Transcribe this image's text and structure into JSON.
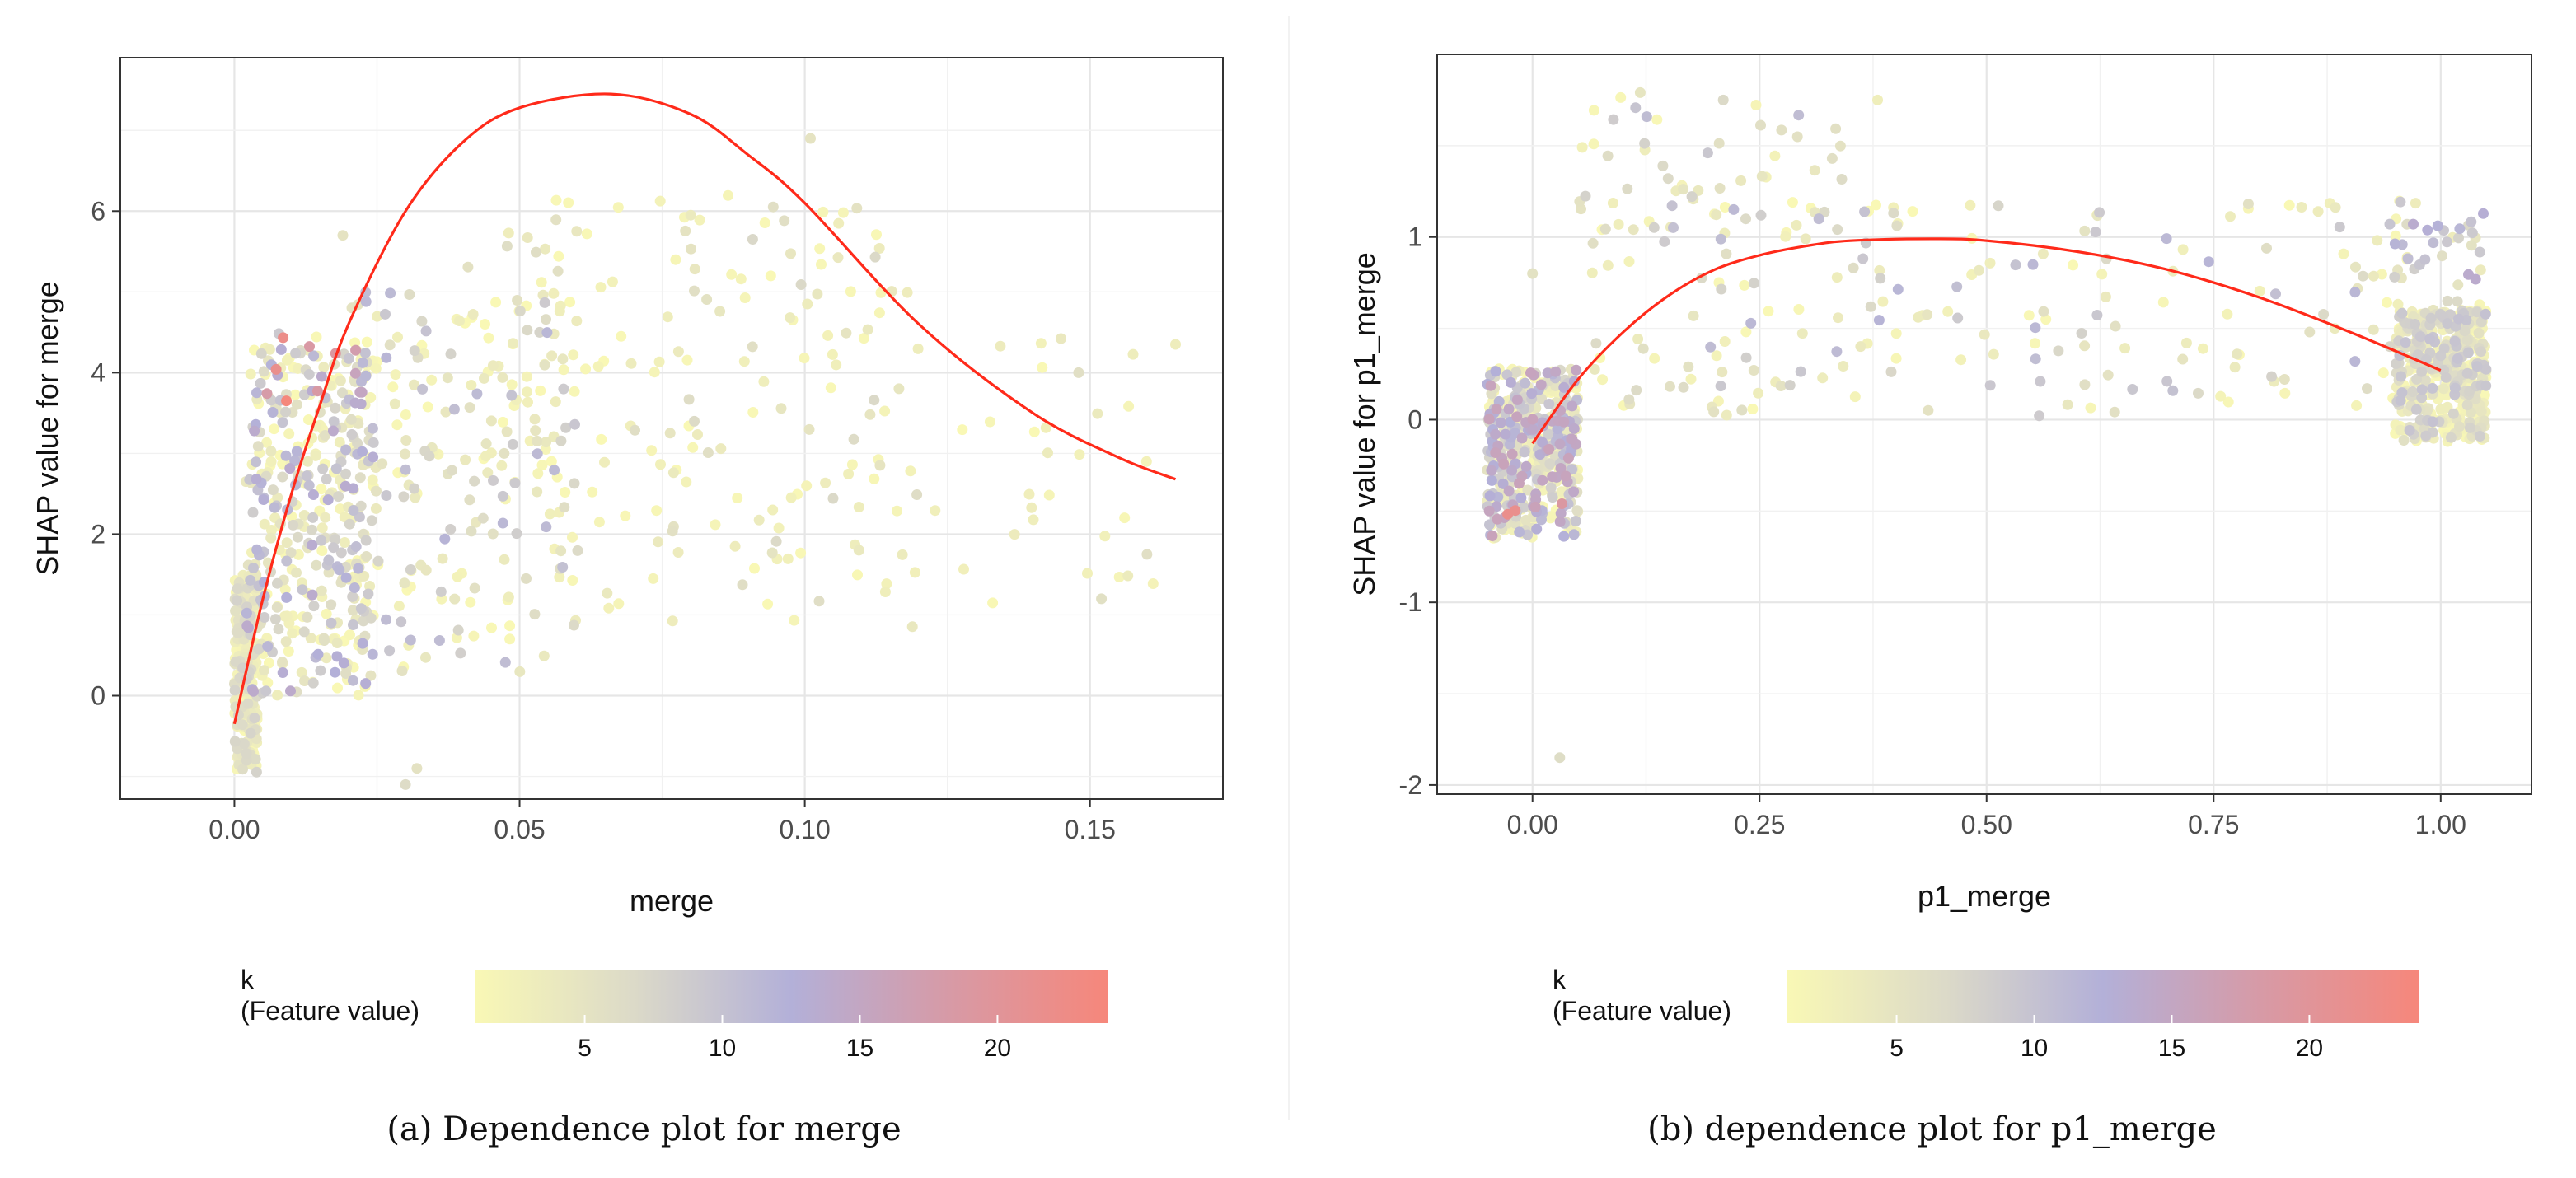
{
  "chart_data": [
    {
      "type": "scatter",
      "id": "a",
      "caption": "(a) Dependence plot for merge",
      "xlabel": "merge",
      "ylabel": "SHAP value for merge",
      "xlim": [
        -0.02,
        0.1733
      ],
      "ylim": [
        -1.28,
        7.9
      ],
      "xticks": [
        0.0,
        0.05,
        0.1,
        0.15
      ],
      "xtick_labels": [
        "0.00",
        "0.05",
        "0.10",
        "0.15"
      ],
      "yticks": [
        0,
        2,
        4,
        6
      ],
      "ytick_labels": [
        "0",
        "2",
        "4",
        "6"
      ],
      "grid": true,
      "fit_line": {
        "color": "#ff2a1a",
        "points": [
          [
            0.0,
            -0.35
          ],
          [
            0.005,
            1.2
          ],
          [
            0.01,
            2.5
          ],
          [
            0.015,
            3.6
          ],
          [
            0.02,
            4.6
          ],
          [
            0.03,
            6.0
          ],
          [
            0.04,
            6.85
          ],
          [
            0.05,
            7.28
          ],
          [
            0.066,
            7.45
          ],
          [
            0.08,
            7.2
          ],
          [
            0.09,
            6.7
          ],
          [
            0.1,
            6.1
          ],
          [
            0.12,
            4.6
          ],
          [
            0.14,
            3.5
          ],
          [
            0.155,
            2.95
          ],
          [
            0.165,
            2.68
          ]
        ]
      },
      "legend": {
        "title": "k",
        "subtitle": "(Feature value)",
        "tick_values": [
          5,
          10,
          15,
          20
        ],
        "tick_labels": [
          "5",
          "10",
          "15",
          "20"
        ],
        "range": [
          1,
          24
        ],
        "colors": [
          "#f9f8b5",
          "#dcdac8",
          "#b3b0d8",
          "#d79aa6",
          "#f6877b"
        ]
      },
      "scatter_generation": {
        "seed": 7,
        "note": "points are a recreation of the dense cloud",
        "clusters": [
          {
            "n": 260,
            "x": [
              0.0,
              0.004
            ],
            "y": [
              -0.95,
              1.5
            ],
            "kmax": 8
          },
          {
            "n": 380,
            "x": [
              0.002,
              0.025
            ],
            "y": [
              0.0,
              4.3
            ],
            "kmax": 14
          },
          {
            "n": 30,
            "x": [
              0.005,
              0.023
            ],
            "y": [
              3.6,
              4.5
            ],
            "kmax": 24
          },
          {
            "n": 200,
            "x": [
              0.02,
              0.06
            ],
            "y": [
              0.2,
              5.0
            ],
            "kmax": 12
          },
          {
            "n": 170,
            "x": [
              0.04,
              0.12
            ],
            "y": [
              0.8,
              6.2
            ],
            "kmax": 7
          },
          {
            "n": 40,
            "x": [
              0.1,
              0.165
            ],
            "y": [
              1.0,
              4.5
            ],
            "kmax": 4
          }
        ],
        "extra_points": [
          [
            0.101,
            6.9
          ],
          [
            0.06,
            5.75
          ],
          [
            0.08,
            5.95
          ],
          [
            0.019,
            5.7
          ],
          [
            0.03,
            -1.1
          ],
          [
            0.032,
            -0.9
          ],
          [
            0.165,
            4.35
          ],
          [
            0.148,
            4.0
          ],
          [
            0.16,
            1.75
          ],
          [
            0.152,
            1.2
          ]
        ]
      }
    },
    {
      "type": "scatter",
      "id": "b",
      "caption": "(b) dependence plot for p1_merge",
      "xlabel": "p1_merge",
      "ylabel": "SHAP value for p1_merge",
      "xlim": [
        -0.105,
        1.1
      ],
      "ylim": [
        -2.05,
        2.0
      ],
      "xticks": [
        0.0,
        0.25,
        0.5,
        0.75,
        1.0
      ],
      "xtick_labels": [
        "0.00",
        "0.25",
        "0.50",
        "0.75",
        "1.00"
      ],
      "yticks": [
        -2,
        -1,
        0,
        1
      ],
      "ytick_labels": [
        "-2",
        "-1",
        "0",
        "1"
      ],
      "grid": true,
      "fit_line": {
        "color": "#ff2a1a",
        "points": [
          [
            0.0,
            -0.13
          ],
          [
            0.05,
            0.22
          ],
          [
            0.1,
            0.48
          ],
          [
            0.15,
            0.68
          ],
          [
            0.2,
            0.82
          ],
          [
            0.25,
            0.9
          ],
          [
            0.3,
            0.95
          ],
          [
            0.35,
            0.98
          ],
          [
            0.44,
            0.99
          ],
          [
            0.5,
            0.98
          ],
          [
            0.6,
            0.92
          ],
          [
            0.7,
            0.82
          ],
          [
            0.8,
            0.67
          ],
          [
            0.9,
            0.48
          ],
          [
            1.0,
            0.27
          ]
        ]
      },
      "legend": {
        "title": "k",
        "subtitle": "(Feature value)",
        "tick_values": [
          5,
          10,
          15,
          20
        ],
        "tick_labels": [
          "5",
          "10",
          "15",
          "20"
        ],
        "range": [
          1,
          24
        ],
        "colors": [
          "#f9f8b5",
          "#dcdac8",
          "#b3b0d8",
          "#d79aa6",
          "#f6877b"
        ]
      },
      "scatter_generation": {
        "seed": 11,
        "note": "points are a recreation of the dense cloud",
        "clusters": [
          {
            "n": 480,
            "x": [
              -0.05,
              0.05
            ],
            "y": [
              -0.65,
              0.28
            ],
            "kmax": 16
          },
          {
            "n": 15,
            "x": [
              -0.05,
              0.05
            ],
            "y": [
              -0.6,
              -0.45
            ],
            "kmax": 24
          },
          {
            "n": 480,
            "x": [
              0.95,
              1.05
            ],
            "y": [
              -0.12,
              0.6
            ],
            "kmax": 10
          },
          {
            "n": 40,
            "x": [
              0.95,
              1.05
            ],
            "y": [
              0.6,
              1.2
            ],
            "kmax": 14
          },
          {
            "n": 200,
            "x": [
              0.05,
              0.95
            ],
            "y": [
              0.0,
              1.2
            ],
            "kmax": 12
          },
          {
            "n": 50,
            "x": [
              0.05,
              0.35
            ],
            "y": [
              1.0,
              1.8
            ],
            "kmax": 11
          }
        ],
        "extra_points": [
          [
            0.03,
            -1.85
          ],
          [
            0.0,
            0.8
          ],
          [
            0.33,
            1.43
          ],
          [
            0.21,
            1.75
          ],
          [
            0.38,
            1.75
          ]
        ]
      }
    }
  ]
}
